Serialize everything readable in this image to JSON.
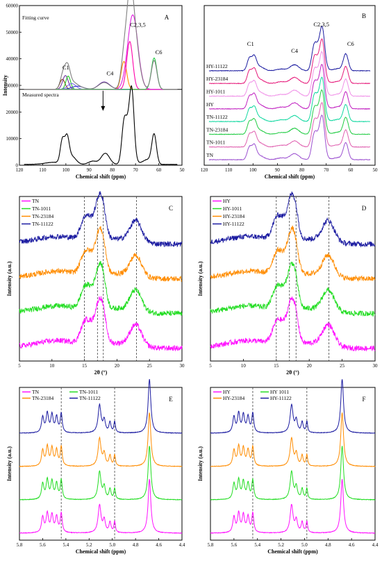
{
  "chart_data": [
    {
      "id": "A",
      "type": "line",
      "panel_label": "A",
      "xlabel": "Chemical shift (ppm)",
      "ylabel": "Intensity",
      "xlim": [
        120,
        50
      ],
      "ylim": [
        0,
        60000
      ],
      "x_ticks": [
        120,
        110,
        100,
        90,
        80,
        70,
        60,
        50
      ],
      "y_ticks": [
        0,
        10000,
        20000,
        30000,
        40000,
        50000,
        60000
      ],
      "divider_y": 28500,
      "top_text": "Fitting curve",
      "bottom_text": "Measured spectra",
      "arrow_x": 84,
      "peak_labels": [
        {
          "text": "C1",
          "x": 100,
          "y": 36000
        },
        {
          "text": "C4",
          "x": 81,
          "y": 33800
        },
        {
          "text": "C2,3,5",
          "x": 69,
          "y": 52000
        },
        {
          "text": "C6",
          "x": 60,
          "y": 41800
        }
      ],
      "baseline": 28500,
      "fitting_peaks": [
        {
          "center": 101.5,
          "width": 1.1,
          "height": 3800,
          "color": "#8b4513"
        },
        {
          "center": 100.2,
          "width": 1.2,
          "height": 5200,
          "color": "#7030a0"
        },
        {
          "center": 99.0,
          "width": 1.0,
          "height": 5000,
          "color": "#22cc22"
        },
        {
          "center": 97.5,
          "width": 1.8,
          "height": 2200,
          "color": "#7b68ee"
        },
        {
          "center": 95.0,
          "width": 2.5,
          "height": 1200,
          "color": "#3333cc"
        },
        {
          "center": 83.5,
          "width": 2.4,
          "height": 2800,
          "color": "#6a2cb0"
        },
        {
          "center": 75.0,
          "width": 1.2,
          "height": 10500,
          "color": "#ff8c00"
        },
        {
          "center": 72.5,
          "width": 1.3,
          "height": 18000,
          "color": "#ff00aa"
        },
        {
          "center": 71.2,
          "width": 2.2,
          "height": 28000,
          "color": "#e020e0"
        },
        {
          "center": 62.0,
          "width": 1.2,
          "height": 11800,
          "color": "#22cc44"
        }
      ],
      "fit_sum_color": "#808080",
      "measured_peaks": [
        {
          "center": 105.0,
          "width": 4.0,
          "height": 800
        },
        {
          "center": 101.5,
          "width": 0.9,
          "height": 8600
        },
        {
          "center": 99.5,
          "width": 0.9,
          "height": 8800
        },
        {
          "center": 97.5,
          "width": 1.8,
          "height": 3000
        },
        {
          "center": 88.5,
          "width": 1.8,
          "height": 1200
        },
        {
          "center": 83.0,
          "width": 1.8,
          "height": 4200
        },
        {
          "center": 75.0,
          "width": 1.0,
          "height": 13000
        },
        {
          "center": 72.5,
          "width": 1.5,
          "height": 17000
        },
        {
          "center": 71.5,
          "width": 0.9,
          "height": 15000
        },
        {
          "center": 65.0,
          "width": 2.0,
          "height": 1800
        },
        {
          "center": 62.0,
          "width": 1.0,
          "height": 11000
        }
      ]
    },
    {
      "id": "B",
      "type": "line",
      "panel_label": "B",
      "xlabel": "Chemical shift (ppm)",
      "ylabel": "",
      "xlim": [
        120,
        50
      ],
      "x_ticks": [
        120,
        110,
        100,
        90,
        80,
        70,
        60,
        50
      ],
      "peak_labels": [
        {
          "text": "C1",
          "x": 101
        },
        {
          "text": "C4",
          "x": 83
        },
        {
          "text": "C2,3,5",
          "x": 72
        },
        {
          "text": "C6",
          "x": 60
        }
      ],
      "series_peaks": [
        {
          "center": 101.5,
          "width": 0.9,
          "height": 0.28
        },
        {
          "center": 99.5,
          "width": 0.9,
          "height": 0.29
        },
        {
          "center": 97.5,
          "width": 1.8,
          "height": 0.1
        },
        {
          "center": 88.5,
          "width": 1.8,
          "height": 0.04
        },
        {
          "center": 83.0,
          "width": 1.8,
          "height": 0.14
        },
        {
          "center": 75.0,
          "width": 1.0,
          "height": 0.48
        },
        {
          "center": 72.5,
          "width": 1.5,
          "height": 0.6
        },
        {
          "center": 71.5,
          "width": 0.9,
          "height": 0.52
        },
        {
          "center": 65.0,
          "width": 2.0,
          "height": 0.05
        },
        {
          "center": 62.0,
          "width": 1.0,
          "height": 0.38
        }
      ],
      "series": [
        {
          "name": "HY-11122",
          "color": "#1a1aa0"
        },
        {
          "name": "HY-23184",
          "color": "#e6197a"
        },
        {
          "name": "HY-1011",
          "color": "#f090e8"
        },
        {
          "name": "HY",
          "color": "#c020c0"
        },
        {
          "name": "TN-11122",
          "color": "#10d8a0"
        },
        {
          "name": "TN-23184",
          "color": "#22cc44"
        },
        {
          "name": "TN-1011",
          "color": "#e060b0"
        },
        {
          "name": "TN",
          "color": "#9b4fd0"
        }
      ]
    },
    {
      "id": "C",
      "type": "line",
      "panel_label": "C",
      "xlabel": "2θ (°)",
      "ylabel": "Intensity (a.u.)",
      "xlim": [
        5,
        30
      ],
      "x_ticks": [
        5,
        10,
        15,
        20,
        25,
        30
      ],
      "dashed_x": [
        15,
        17,
        17.9,
        23
      ],
      "legend_position": "top-left",
      "legend_columns": 1,
      "series": [
        {
          "name": "TN-11122",
          "color": "#1a1aa0"
        },
        {
          "name": "TN-23184",
          "color": "#ff8c00"
        },
        {
          "name": "TN-1011",
          "color": "#22dd22"
        },
        {
          "name": "TN",
          "color": "#ff10ff"
        }
      ],
      "legend_order": [
        3,
        2,
        1,
        0
      ]
    },
    {
      "id": "D",
      "type": "line",
      "panel_label": "D",
      "xlabel": "2θ (°)",
      "ylabel": "Intensity (a.u.)",
      "xlim": [
        5,
        30
      ],
      "x_ticks": [
        5,
        10,
        15,
        20,
        25,
        30
      ],
      "dashed_x": [
        15,
        17,
        18,
        23
      ],
      "legend_position": "top-left",
      "legend_columns": 1,
      "series": [
        {
          "name": "HY-11122",
          "color": "#1a1aa0"
        },
        {
          "name": "HY-23184",
          "color": "#ff8c00"
        },
        {
          "name": "HY-1011",
          "color": "#22dd22"
        },
        {
          "name": "HY",
          "color": "#ff10ff"
        }
      ],
      "legend_order": [
        3,
        2,
        1,
        0
      ]
    },
    {
      "id": "E",
      "type": "line",
      "panel_label": "E",
      "xlabel": "Chemical shift (ppm)",
      "ylabel": "Intensity (a.u.)",
      "xlim": [
        5.8,
        4.4
      ],
      "x_ticks": [
        5.8,
        5.6,
        5.4,
        5.2,
        5.0,
        4.8,
        4.6,
        4.4
      ],
      "dashed_x": [
        5.44,
        4.98
      ],
      "legend_position": "top",
      "legend_columns": 2,
      "series": [
        {
          "name": "TN-11122",
          "color": "#1a1aa0"
        },
        {
          "name": "TN-23184",
          "color": "#ff8c00"
        },
        {
          "name": "TN-1011",
          "color": "#22dd22"
        },
        {
          "name": "TN",
          "color": "#ff10ff"
        }
      ],
      "legend_order": [
        3,
        2,
        1,
        0
      ]
    },
    {
      "id": "F",
      "type": "line",
      "panel_label": "F",
      "xlabel": "Chemical shift (ppm)",
      "ylabel": "Intensity (a.u.)",
      "xlim": [
        5.8,
        4.4
      ],
      "x_ticks": [
        5.8,
        5.6,
        5.4,
        5.2,
        5.0,
        4.8,
        4.6,
        4.4
      ],
      "dashed_x": [
        5.44,
        4.98
      ],
      "legend_position": "top",
      "legend_columns": 2,
      "series": [
        {
          "name": "HY-11122",
          "color": "#1a1aa0"
        },
        {
          "name": "HY-23184",
          "color": "#ff8c00"
        },
        {
          "name": "HY 1011",
          "color": "#22dd22"
        },
        {
          "name": "HY",
          "color": "#ff10ff"
        }
      ],
      "legend_order": [
        3,
        2,
        1,
        0
      ]
    }
  ]
}
